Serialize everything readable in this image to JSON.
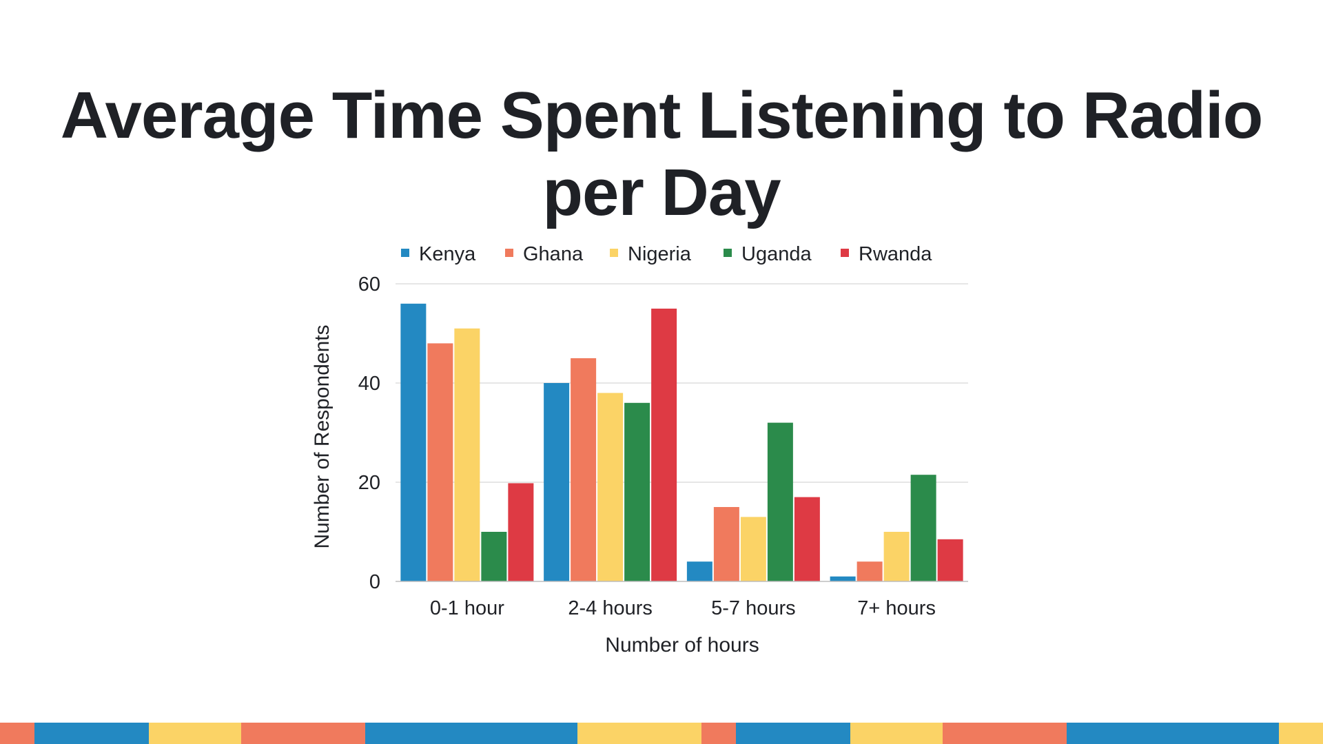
{
  "page": {
    "title": "Average Time Spent Listening to Radio per Day"
  },
  "colors": {
    "Kenya": "#2389c2",
    "Ghana": "#f07a5d",
    "Nigeria": "#fbd366",
    "Uganda": "#2b8b4b",
    "Rwanda": "#de3a44",
    "gridline": "#d6d6d6",
    "axis": "#bdbdbd",
    "text": "#1f2126"
  },
  "footer_strip": {
    "colors": [
      "#f07a5d",
      "#2389c2",
      "#fbd366",
      "#f07a5d",
      "#2389c2",
      "#fbd366",
      "#f07a5d",
      "#2389c2",
      "#fbd366",
      "#f07a5d",
      "#2389c2",
      "#fbd366"
    ]
  },
  "chart_data": {
    "type": "bar",
    "title": "",
    "xlabel": "Number of hours",
    "ylabel": "Number of Respondents",
    "categories": [
      "0-1 hour",
      "2-4 hours",
      "5-7 hours",
      "7+ hours"
    ],
    "ylim": [
      0,
      60
    ],
    "yticks": [
      0,
      20,
      40,
      60
    ],
    "grid": true,
    "legend_position": "top",
    "series": [
      {
        "name": "Kenya",
        "values": [
          56,
          40,
          4,
          1
        ]
      },
      {
        "name": "Ghana",
        "values": [
          48,
          45,
          15,
          4
        ]
      },
      {
        "name": "Nigeria",
        "values": [
          51,
          38,
          13,
          10
        ]
      },
      {
        "name": "Uganda",
        "values": [
          10,
          36,
          32,
          21.5
        ]
      },
      {
        "name": "Rwanda",
        "values": [
          19.8,
          55,
          17,
          8.5
        ]
      }
    ]
  }
}
